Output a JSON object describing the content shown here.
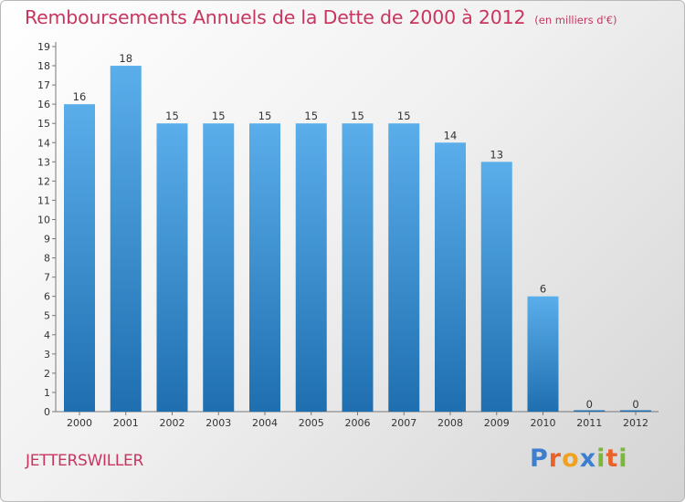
{
  "header": {
    "title": "Remboursements Annuels de la Dette de 2000 à 2012",
    "unit": "(en milliers d'€)"
  },
  "footer": {
    "commune": "JETTERSWILLER",
    "logo_text": "Proxiti",
    "logo_letters": [
      {
        "char": "P",
        "color": "#3d7fce"
      },
      {
        "char": "r",
        "color": "#e9622b"
      },
      {
        "char": "o",
        "color": "#f0a21e"
      },
      {
        "char": "x",
        "color": "#3d7fce"
      },
      {
        "char": "i",
        "color": "#7bb83a"
      },
      {
        "char": "t",
        "color": "#e9622b"
      },
      {
        "char": "i",
        "color": "#7bb83a"
      }
    ]
  },
  "colors": {
    "accent": "#c8365f",
    "bar_top": "#5aaeea",
    "bar_bottom": "#1f6fb0"
  },
  "chart_data": {
    "type": "bar",
    "title": "Remboursements Annuels de la Dette de 2000 à 2012",
    "subtitle": "(en milliers d'€)",
    "categories": [
      "2000",
      "2001",
      "2002",
      "2003",
      "2004",
      "2005",
      "2006",
      "2007",
      "2008",
      "2009",
      "2010",
      "2011",
      "2012"
    ],
    "values": [
      16,
      18,
      15,
      15,
      15,
      15,
      15,
      15,
      14,
      13,
      6,
      0,
      0
    ],
    "data_labels": [
      "16",
      "18",
      "15",
      "15",
      "15",
      "15",
      "15",
      "15",
      "14",
      "13",
      "6",
      "0",
      "0"
    ],
    "xlabel": "",
    "ylabel": "",
    "ylim": [
      0,
      19
    ],
    "yticks": [
      0,
      1,
      2,
      3,
      4,
      5,
      6,
      7,
      8,
      9,
      10,
      11,
      12,
      13,
      14,
      15,
      16,
      17,
      18,
      19
    ],
    "grid": false,
    "legend": "none"
  }
}
